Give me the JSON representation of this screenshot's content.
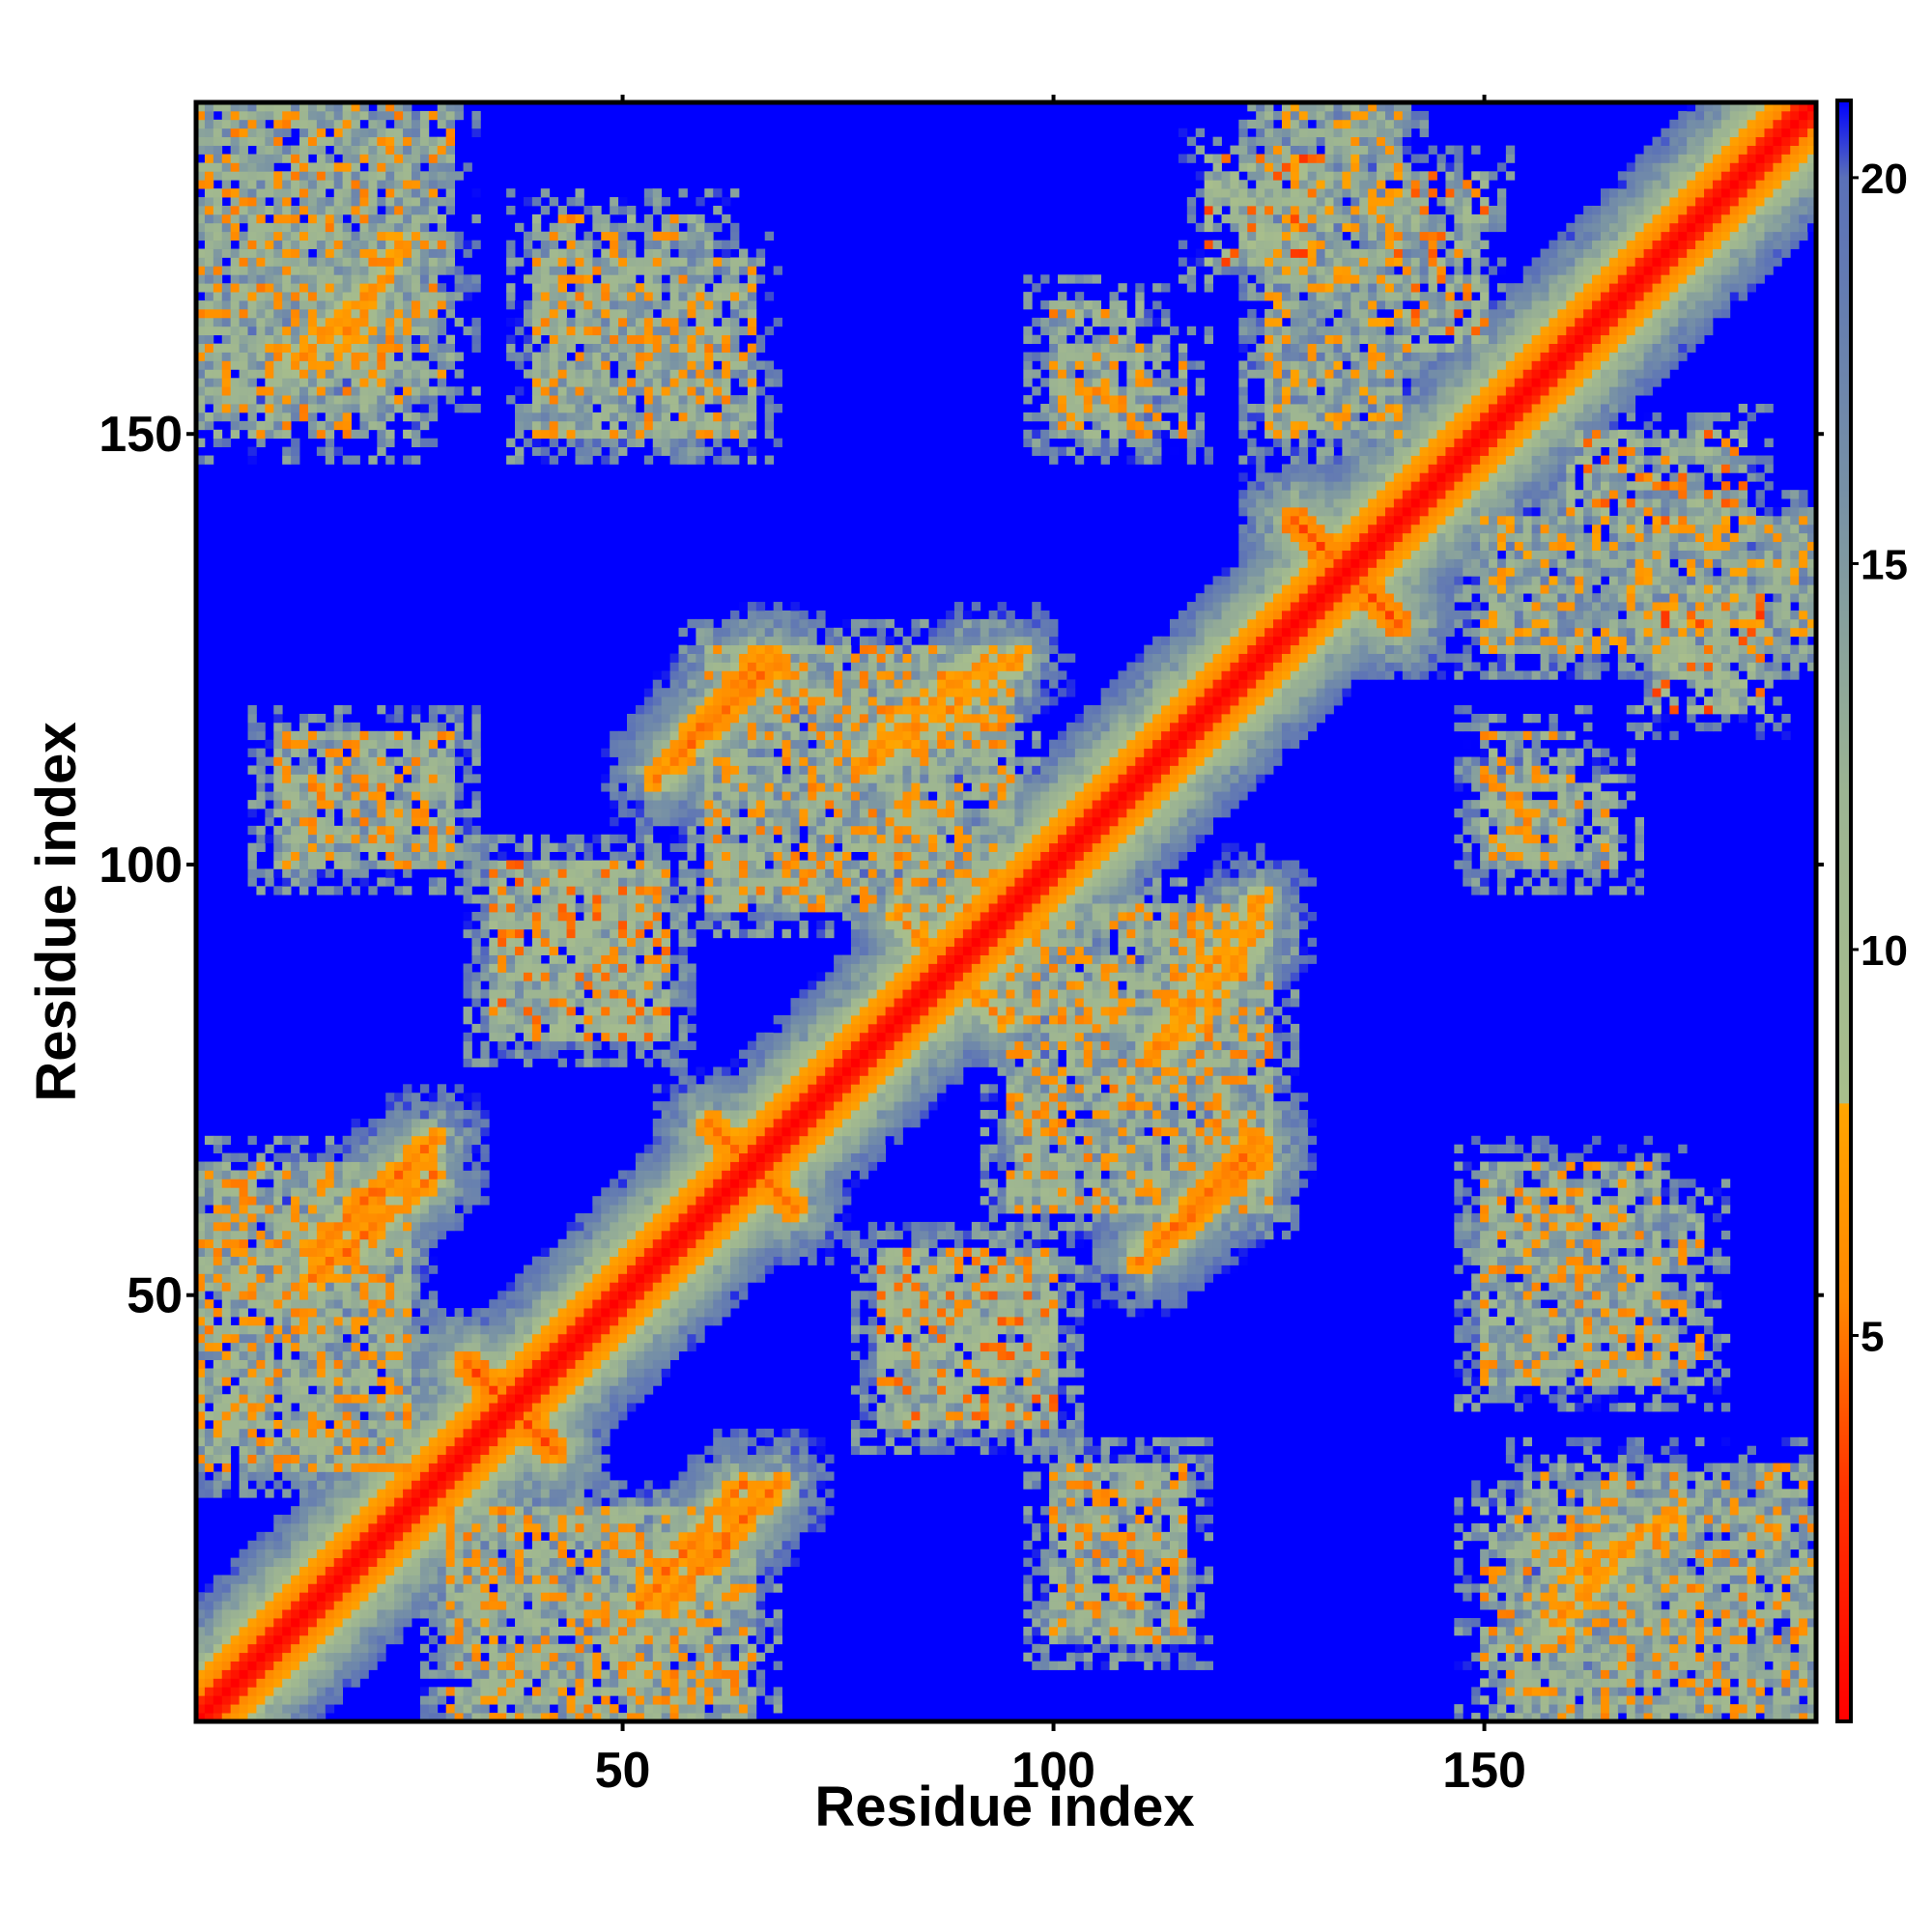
{
  "chart_data": {
    "type": "heatmap",
    "title": "",
    "xlabel": "Residue index",
    "ylabel": "Residue index",
    "x_range": [
      1,
      188
    ],
    "y_range": [
      1,
      188
    ],
    "x_ticks": [
      50,
      100,
      150
    ],
    "y_ticks": [
      50,
      100,
      150
    ],
    "x_tick_labels": [
      "50",
      "100",
      "150"
    ],
    "y_tick_labels": [
      "50",
      "100",
      "150"
    ],
    "value_range": [
      0,
      21
    ],
    "clip_above": 21,
    "colorbar": {
      "ticks": [
        5,
        10,
        15,
        20
      ],
      "tick_labels": [
        "5",
        "10",
        "15",
        "20"
      ],
      "stops": [
        {
          "value": 0,
          "color": "#ff0000"
        },
        {
          "value": 3,
          "color": "#ff3300"
        },
        {
          "value": 5.5,
          "color": "#ff8800"
        },
        {
          "value": 8,
          "color": "#ffa500"
        },
        {
          "value": 8.01,
          "color": "#a8be8c"
        },
        {
          "value": 12,
          "color": "#9cb492"
        },
        {
          "value": 16,
          "color": "#7690a6"
        },
        {
          "value": 20,
          "color": "#5a70b8"
        },
        {
          "value": 21,
          "color": "#0000ff"
        }
      ]
    },
    "background_color": "#0000ff",
    "diagonal": {
      "from": 1,
      "to": 188,
      "value": 0,
      "width": 6
    },
    "contact_features": [
      {
        "kind": "antiparallel",
        "i": [
          32,
          42
        ],
        "j": [
          32,
          42
        ],
        "value": 4
      },
      {
        "kind": "antiparallel",
        "i": [
          128,
          140
        ],
        "j": [
          128,
          140
        ],
        "value": 4
      },
      {
        "kind": "antiparallel",
        "i": [
          60,
          70
        ],
        "j": [
          60,
          70
        ],
        "value": 5
      },
      {
        "kind": "antiparallel",
        "i": [
          82,
          94
        ],
        "j": [
          82,
          94
        ],
        "value": 6
      },
      {
        "kind": "parallel",
        "i": [
          14,
          28
        ],
        "j": [
          55,
          68
        ],
        "value": 5
      },
      {
        "kind": "parallel",
        "i": [
          52,
          64
        ],
        "j": [
          14,
          28
        ],
        "value": 5
      },
      {
        "kind": "parallel",
        "i": [
          54,
          66
        ],
        "j": [
          110,
          124
        ],
        "value": 5
      },
      {
        "kind": "parallel",
        "i": [
          78,
          92
        ],
        "j": [
          112,
          124
        ],
        "value": 6
      },
      {
        "kind": "parallel",
        "i": [
          112,
          124
        ],
        "j": [
          56,
          68
        ],
        "value": 5
      },
      {
        "kind": "parallel",
        "i": [
          112,
          124
        ],
        "j": [
          80,
          96
        ],
        "value": 6
      },
      {
        "kind": "parallel",
        "i": [
          18,
          24
        ],
        "j": [
          160,
          172
        ],
        "value": 6
      },
      {
        "kind": "parallel",
        "i": [
          158,
          166
        ],
        "j": [
          12,
          20
        ],
        "value": 6
      },
      {
        "kind": "patch",
        "i": [
          170,
          182
        ],
        "j": [
          118,
          132
        ],
        "value": 7
      },
      {
        "kind": "patch",
        "i": [
          140,
          150
        ],
        "j": [
          160,
          180
        ],
        "value": 8
      },
      {
        "kind": "patch",
        "i": [
          100,
          110
        ],
        "j": [
          150,
          165
        ],
        "value": 9
      },
      {
        "kind": "patch",
        "i": [
          150,
          160
        ],
        "j": [
          100,
          115
        ],
        "value": 9
      },
      {
        "kind": "patch",
        "i": [
          100,
          115
        ],
        "j": [
          10,
          30
        ],
        "value": 9
      },
      {
        "kind": "patch",
        "i": [
          10,
          30
        ],
        "j": [
          100,
          115
        ],
        "value": 9
      },
      {
        "kind": "patch",
        "i": [
          35,
          55
        ],
        "j": [
          80,
          100
        ],
        "value": 8
      },
      {
        "kind": "patch",
        "i": [
          80,
          100
        ],
        "j": [
          35,
          55
        ],
        "value": 8
      },
      {
        "kind": "patch",
        "i": [
          150,
          170
        ],
        "j": [
          40,
          65
        ],
        "value": 9
      },
      {
        "kind": "patch",
        "i": [
          40,
          60
        ],
        "j": [
          150,
          175
        ],
        "value": 9
      },
      {
        "kind": "patch",
        "i": [
          1,
          25
        ],
        "j": [
          150,
          188
        ],
        "value": 9
      },
      {
        "kind": "patch",
        "i": [
          155,
          188
        ],
        "j": [
          1,
          30
        ],
        "value": 9
      },
      {
        "kind": "patch",
        "i": [
          30,
          65
        ],
        "j": [
          1,
          25
        ],
        "value": 9
      },
      {
        "kind": "patch",
        "i": [
          1,
          25
        ],
        "j": [
          30,
          65
        ],
        "value": 9
      },
      {
        "kind": "patch",
        "i": [
          95,
          125
        ],
        "j": [
          60,
          95
        ],
        "value": 9
      },
      {
        "kind": "patch",
        "i": [
          60,
          95
        ],
        "j": [
          95,
          125
        ],
        "value": 9
      },
      {
        "kind": "patch",
        "i": [
          125,
          140
        ],
        "j": [
          150,
          188
        ],
        "value": 10
      },
      {
        "kind": "patch",
        "i": [
          150,
          188
        ],
        "j": [
          125,
          140
        ],
        "value": 10
      }
    ]
  }
}
